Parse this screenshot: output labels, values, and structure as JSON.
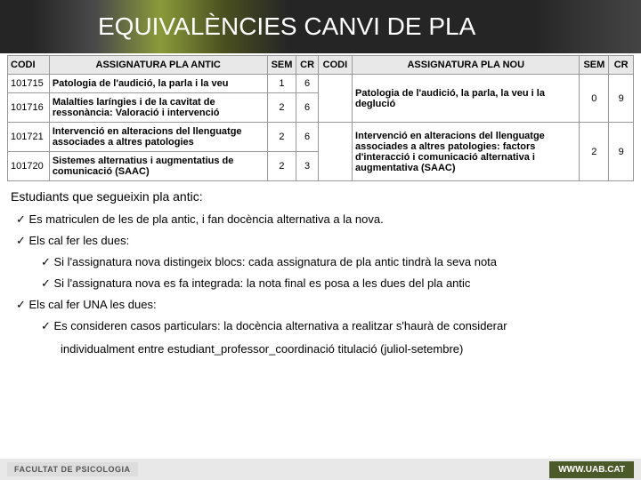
{
  "title": "EQUIVALÈNCIES CANVI DE PLA",
  "headers": {
    "codi": "CODI",
    "assig_antic": "ASSIGNATURA PLA ANTIC",
    "sem": "SEM",
    "cr": "CR",
    "codi2": "CODI",
    "assig_nou": "ASSIGNATURA PLA NOU",
    "sem2": "SEM",
    "cr2": "CR"
  },
  "rows": [
    {
      "codi": "101715",
      "assig": "Patologia de l'audició, la parla i la veu",
      "sem": "1",
      "cr": "6"
    },
    {
      "codi": "101716",
      "assig": "Malalties laríngies i de la cavitat de ressonància: Valoració i intervenció",
      "sem": "2",
      "cr": "6"
    },
    {
      "codi": "101721",
      "assig": "Intervenció en alteracions del llenguatge associades a altres patologies",
      "sem": "2",
      "cr": "6"
    },
    {
      "codi": "101720",
      "assig": "Sistemes alternatius i augmentatius de comunicació (SAAC)",
      "sem": "2",
      "cr": "3"
    }
  ],
  "nou": [
    {
      "assig": "Patologia de l'audició, la parla, la veu i la deglució",
      "sem": "0",
      "cr": "9"
    },
    {
      "assig": "Intervenció en alteracions del llenguatge associades a altres patologies: factors d'interacció i comunicació alternativa i augmentativa (SAAC)",
      "sem": "2",
      "cr": "9"
    }
  ],
  "intro": "Estudiants que segueixin pla antic:",
  "bullets": {
    "b1": "Es matriculen de les de pla antic, i fan docència alternativa a la nova.",
    "b2": "Els cal fer les dues:",
    "b2a": "Si l'assignatura nova distingeix blocs: cada assignatura de pla antic tindrà la seva nota",
    "b2b": "Si l'assignatura nova es fa integrada: la nota final es posa a les dues del pla antic",
    "b3": "Els cal fer UNA les dues:",
    "b3a": "Es consideren casos particulars: la docència alternativa a realitzar s'haurà de considerar",
    "b3b": "individualment entre estudiant_professor_coordinació titulació (juliol-setembre)"
  },
  "footer": {
    "left": "FACULTAT DE PSICOLOGIA",
    "right": "WWW.UAB.CAT"
  }
}
